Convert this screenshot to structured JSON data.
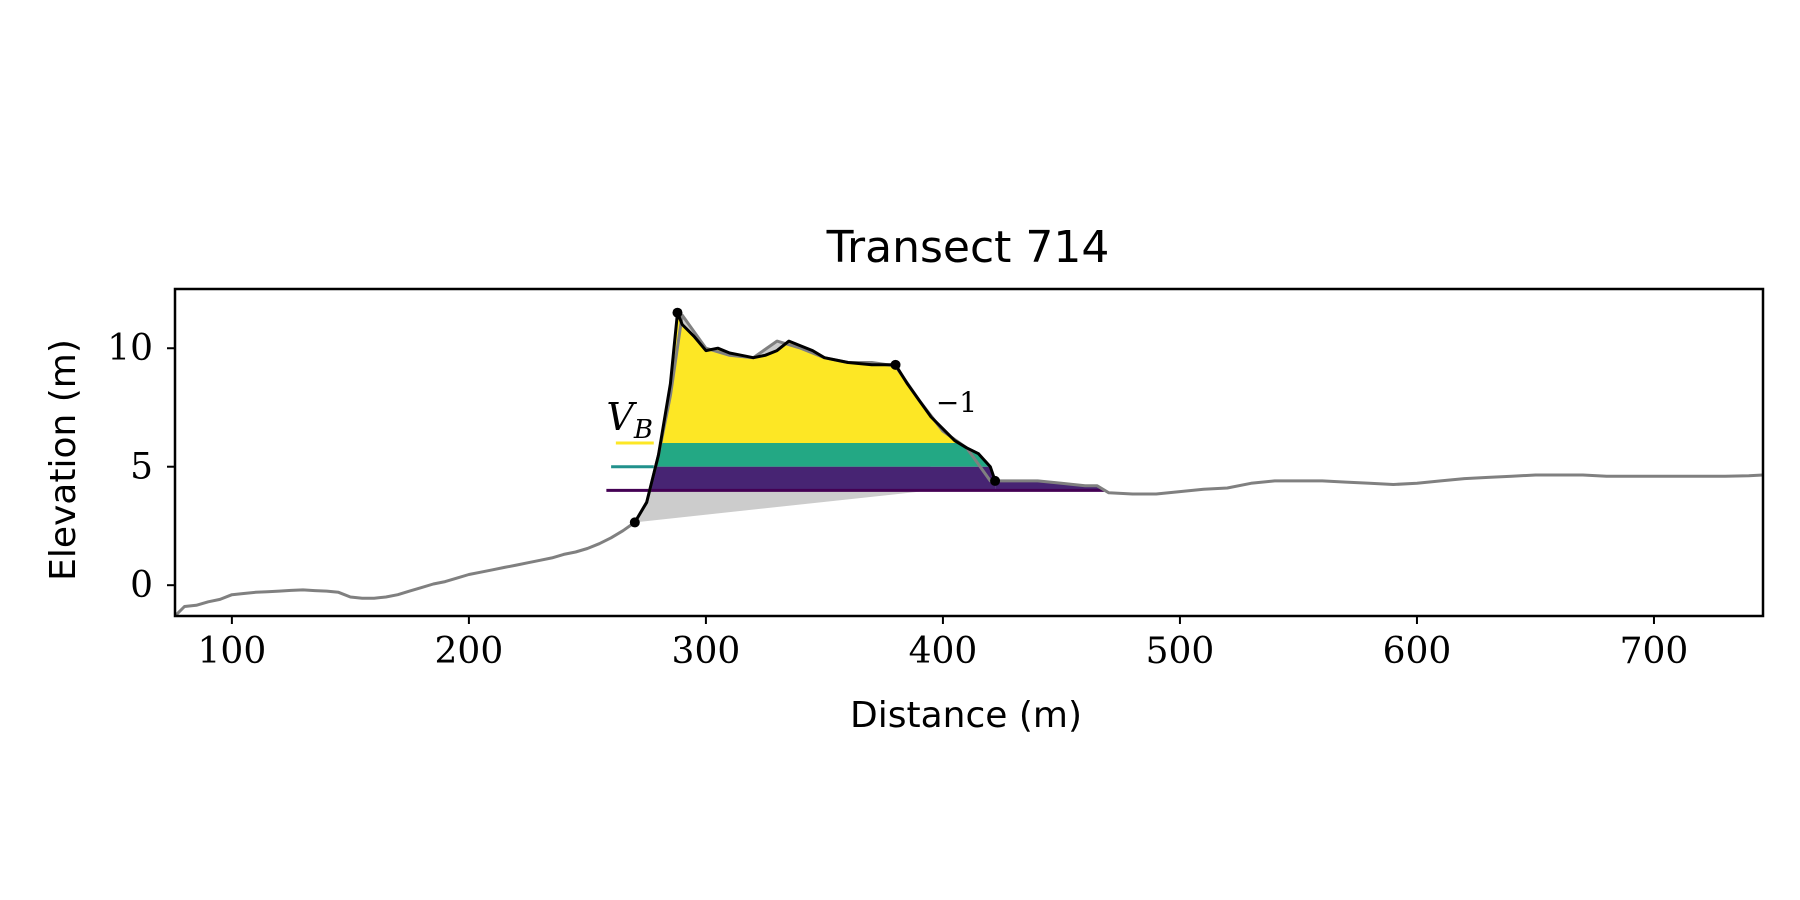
{
  "chart_data": {
    "type": "area",
    "title": "Transect 714",
    "xlabel": "Distance (m)",
    "ylabel": "Elevation (m)",
    "xlim": [
      76,
      746
    ],
    "ylim": [
      -1.3,
      12.5
    ],
    "xticks": [
      100,
      200,
      300,
      400,
      500,
      600,
      700
    ],
    "yticks": [
      0,
      5,
      10
    ],
    "grid": false,
    "colors": {
      "profile": "#808080",
      "dune": "#000000",
      "base_fill": "#cccccc",
      "level_yellow": "#fde725",
      "level_teal": "#21918c",
      "level_purple": "#440154",
      "fill_yellow": "#fde725",
      "fill_green": "#23a884",
      "fill_purple": "#472473"
    },
    "profile": {
      "x": [
        76,
        80,
        85,
        90,
        95,
        100,
        105,
        110,
        115,
        120,
        125,
        130,
        135,
        140,
        145,
        150,
        155,
        160,
        165,
        170,
        175,
        180,
        185,
        190,
        195,
        200,
        205,
        210,
        215,
        220,
        225,
        230,
        235,
        240,
        245,
        250,
        255,
        260,
        265,
        270,
        275,
        280,
        285,
        290,
        300,
        310,
        320,
        330,
        340,
        350,
        360,
        370,
        380,
        390,
        400,
        410,
        420,
        430,
        440,
        450,
        460,
        465,
        470,
        480,
        490,
        500,
        510,
        520,
        530,
        540,
        550,
        560,
        570,
        580,
        590,
        600,
        610,
        620,
        630,
        640,
        650,
        660,
        670,
        680,
        690,
        700,
        710,
        720,
        730,
        740,
        746
      ],
      "y": [
        -1.3,
        -0.9,
        -0.85,
        -0.7,
        -0.6,
        -0.4,
        -0.35,
        -0.3,
        -0.28,
        -0.25,
        -0.22,
        -0.2,
        -0.23,
        -0.25,
        -0.3,
        -0.5,
        -0.55,
        -0.55,
        -0.5,
        -0.4,
        -0.25,
        -0.1,
        0.05,
        0.15,
        0.3,
        0.45,
        0.55,
        0.65,
        0.75,
        0.85,
        0.95,
        1.05,
        1.15,
        1.3,
        1.4,
        1.55,
        1.75,
        2.0,
        2.3,
        2.65,
        3.5,
        5.5,
        8.0,
        11.4,
        10.0,
        9.7,
        9.6,
        10.3,
        10.0,
        9.6,
        9.4,
        9.4,
        9.25,
        7.8,
        6.5,
        5.8,
        4.4,
        4.4,
        4.4,
        4.3,
        4.2,
        4.2,
        3.9,
        3.85,
        3.85,
        3.95,
        4.05,
        4.1,
        4.3,
        4.4,
        4.4,
        4.4,
        4.35,
        4.3,
        4.25,
        4.3,
        4.4,
        4.5,
        4.55,
        4.6,
        4.65,
        4.65,
        4.65,
        4.6,
        4.6,
        4.6,
        4.6,
        4.6,
        4.6,
        4.62,
        4.65
      ]
    },
    "dune_profile": {
      "x": [
        270,
        275,
        280,
        285,
        288,
        290,
        295,
        300,
        305,
        310,
        315,
        320,
        325,
        330,
        335,
        340,
        345,
        350,
        355,
        360,
        365,
        370,
        375,
        380,
        385,
        390,
        395,
        400,
        405,
        410,
        415,
        420,
        422
      ],
      "y": [
        2.65,
        3.5,
        5.5,
        8.5,
        11.5,
        11.0,
        10.5,
        9.9,
        10.0,
        9.8,
        9.7,
        9.6,
        9.7,
        9.9,
        10.3,
        10.1,
        9.9,
        9.6,
        9.5,
        9.4,
        9.35,
        9.3,
        9.3,
        9.3,
        8.5,
        7.8,
        7.1,
        6.6,
        6.1,
        5.8,
        5.55,
        5.0,
        4.4
      ]
    },
    "key_points": [
      {
        "x": 270,
        "y": 2.65
      },
      {
        "x": 288,
        "y": 11.5
      },
      {
        "x": 380,
        "y": 9.3
      },
      {
        "x": 422,
        "y": 4.4
      }
    ],
    "levels": [
      {
        "y": 6.0,
        "x_start": 262,
        "x_end": 278,
        "color": "#fde725"
      },
      {
        "y": 5.0,
        "x_start": 260,
        "x_end": 278,
        "color": "#21918c"
      },
      {
        "y": 4.0,
        "x_start": 258,
        "x_end": 468,
        "color": "#440154"
      }
    ],
    "annotations": {
      "vb_symbol": "V",
      "vb_subscript": "B",
      "slope_label": "−1"
    }
  }
}
